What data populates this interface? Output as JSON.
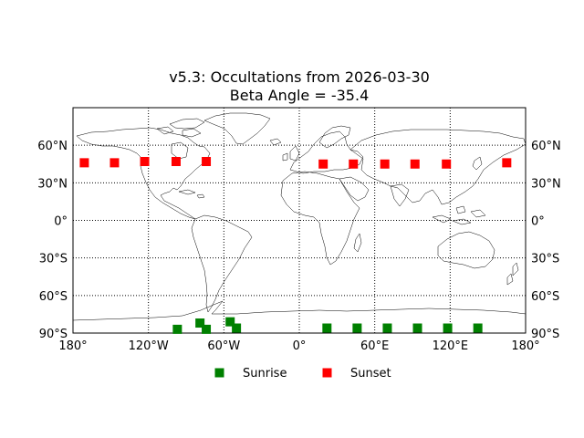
{
  "chart_data": {
    "type": "scatter",
    "title": "v5.3: Occultations from 2026-03-30",
    "subtitle": "Beta Angle = -35.4",
    "xlim": [
      -180,
      180
    ],
    "ylim": [
      -90,
      90
    ],
    "grid": true,
    "legend_placement": "bottom",
    "x_ticks": [
      {
        "value": -180,
        "label": "180°"
      },
      {
        "value": -120,
        "label": "120°W"
      },
      {
        "value": -60,
        "label": "60°W"
      },
      {
        "value": 0,
        "label": "0°"
      },
      {
        "value": 60,
        "label": "60°E"
      },
      {
        "value": 120,
        "label": "120°E"
      },
      {
        "value": 180,
        "label": "180°"
      }
    ],
    "y_ticks": [
      {
        "value": 60,
        "label": "60°N"
      },
      {
        "value": 30,
        "label": "30°N"
      },
      {
        "value": 0,
        "label": "0°"
      },
      {
        "value": -30,
        "label": "30°S"
      },
      {
        "value": -60,
        "label": "60°S"
      },
      {
        "value": -90,
        "label": "90°S"
      }
    ],
    "series": [
      {
        "name": "Sunrise",
        "color": "#008000",
        "marker": "square",
        "points": [
          {
            "lon": -97,
            "lat": -87
          },
          {
            "lon": -79,
            "lat": -82
          },
          {
            "lon": -74,
            "lat": -87
          },
          {
            "lon": -55,
            "lat": -81
          },
          {
            "lon": -50,
            "lat": -86
          },
          {
            "lon": 22,
            "lat": -86
          },
          {
            "lon": 46,
            "lat": -86
          },
          {
            "lon": 70,
            "lat": -86
          },
          {
            "lon": 94,
            "lat": -86
          },
          {
            "lon": 118,
            "lat": -86
          },
          {
            "lon": 142,
            "lat": -86
          }
        ]
      },
      {
        "name": "Sunset",
        "color": "#ff0000",
        "marker": "square",
        "points": [
          {
            "lon": -171,
            "lat": 46
          },
          {
            "lon": -147,
            "lat": 46
          },
          {
            "lon": -123,
            "lat": 47
          },
          {
            "lon": -98,
            "lat": 47
          },
          {
            "lon": -74,
            "lat": 47
          },
          {
            "lon": 19,
            "lat": 45
          },
          {
            "lon": 43,
            "lat": 45
          },
          {
            "lon": 68,
            "lat": 45
          },
          {
            "lon": 92,
            "lat": 45
          },
          {
            "lon": 117,
            "lat": 45
          },
          {
            "lon": 165,
            "lat": 46
          }
        ]
      }
    ]
  }
}
